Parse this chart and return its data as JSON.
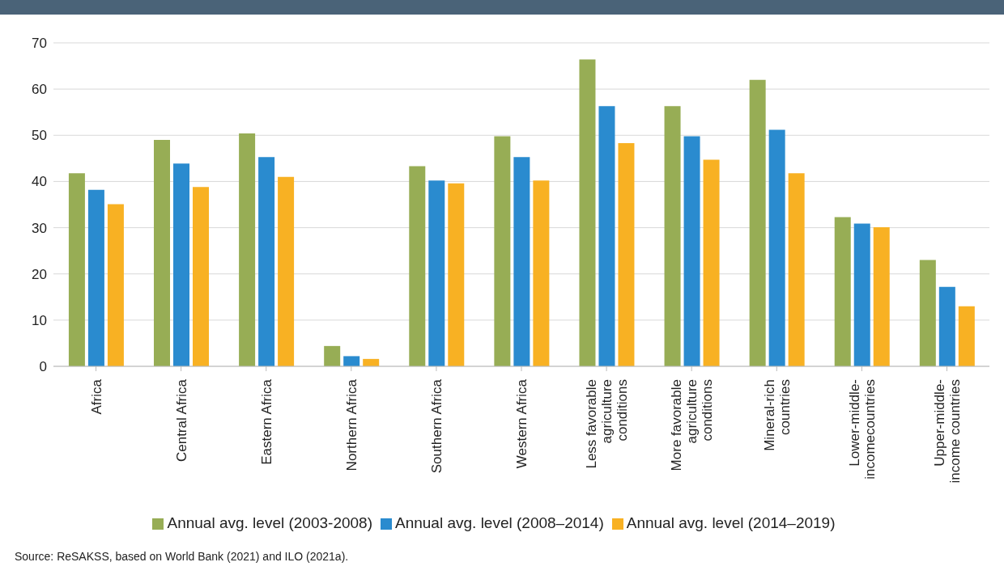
{
  "chart_data": {
    "type": "bar",
    "categories": [
      "Africa",
      "Central Africa",
      "Eastern Africa",
      "Northern Africa",
      "Southern Africa",
      "Western Africa",
      "Less favorable\nagriculture\nconditions",
      "More favorable\nagriculture\nconditions",
      "Mineral-rich\ncountries",
      "Lower-middle-\nincomecountries",
      "Upper-middle-\nincome countries"
    ],
    "series": [
      {
        "name": "Annual avg. level (2003-2008)",
        "color": "#97ad55",
        "values": [
          41.8,
          49,
          50.4,
          4.4,
          43.3,
          49.8,
          66.4,
          56.3,
          62,
          32.3,
          23
        ]
      },
      {
        "name": "Annual avg. level (2008–2014)",
        "color": "#2a8bcf",
        "values": [
          38.2,
          43.9,
          45.3,
          2.2,
          40.2,
          45.3,
          56.3,
          49.8,
          51.2,
          30.9,
          17.2
        ]
      },
      {
        "name": "Annual avg. level (2014–2019)",
        "color": "#f8b123",
        "values": [
          35.1,
          38.8,
          41,
          1.6,
          39.6,
          40.2,
          48.3,
          44.7,
          41.8,
          30.1,
          13
        ]
      }
    ],
    "ylim": [
      0,
      70
    ],
    "yticks": [
      0,
      10,
      20,
      30,
      40,
      50,
      60,
      70
    ],
    "grid": "y",
    "legend": "bottom",
    "annotations": [
      "Source: ReSAKSS, based on World Bank (2021) and ILO (2021a)."
    ]
  }
}
